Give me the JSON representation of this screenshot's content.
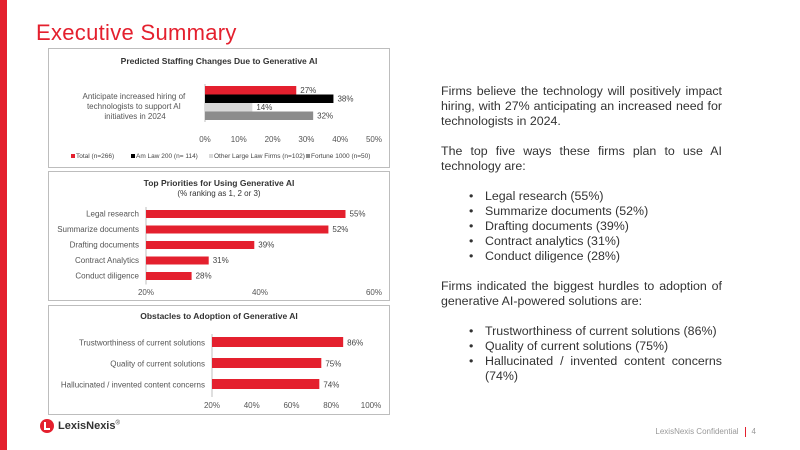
{
  "page": {
    "title": "Executive Summary",
    "footer": {
      "confidential": "LexisNexis Confidential",
      "page_number": "4"
    },
    "logo_text": "LexisNexis",
    "logo_suffix": "®",
    "accent_color": "#e4202e"
  },
  "right": {
    "p1": "Firms believe the technology will positively impact hiring, with 27% anticipating an increased need for technologists in 2024.",
    "p2": "The top five ways these firms plan to use AI technology are:",
    "uses": [
      "Legal research (55%)",
      "Summarize documents (52%)",
      "Drafting documents (39%)",
      "Contract analytics (31%)",
      "Conduct diligence (28%)"
    ],
    "p3": "Firms indicated the biggest hurdles to adoption of generative AI-powered solutions are:",
    "hurdles": [
      "Trustworthiness of current solutions (86%)",
      "Quality of current solutions (75%)",
      "Hallucinated / invented content concerns (74%)"
    ],
    "bullet": "•"
  },
  "chart_data": [
    {
      "type": "bar",
      "title": "Predicted Staffing Changes Due to Generative AI",
      "categories": [
        "Anticipate increased hiring of technologists to support AI initiatives in 2024"
      ],
      "series": [
        {
          "name": "Total (n=266)",
          "values": [
            27
          ],
          "color": "#e4202e"
        },
        {
          "name": "Am Law 200 (n= 114)",
          "values": [
            38
          ],
          "color": "#000000"
        },
        {
          "name": "Other Large Law Firms (n=102)",
          "values": [
            14
          ],
          "color": "#d9d9d9"
        },
        {
          "name": "Fortune 1000 (n=50)",
          "values": [
            32
          ],
          "color": "#8c8c8c"
        }
      ],
      "xlim": [
        0,
        50
      ],
      "xticks": [
        "0%",
        "10%",
        "20%",
        "30%",
        "40%",
        "50%"
      ],
      "data_labels": [
        "27%",
        "38%",
        "14%",
        "32%"
      ],
      "legend_position": "bottom"
    },
    {
      "type": "bar",
      "title": "Top Priorities for Using Generative AI",
      "subtitle": "(% ranking as 1, 2 or 3)",
      "categories": [
        "Legal research",
        "Summarize documents",
        "Drafting documents",
        "Contract Analytics",
        "Conduct diligence"
      ],
      "values": [
        55,
        52,
        39,
        31,
        28
      ],
      "data_labels": [
        "55%",
        "52%",
        "39%",
        "31%",
        "28%"
      ],
      "xlim": [
        20,
        60
      ],
      "xticks": [
        "20%",
        "40%",
        "60%"
      ],
      "color": "#e4202e"
    },
    {
      "type": "bar",
      "title": "Obstacles to Adoption of Generative AI",
      "categories": [
        "Trustworthiness of current solutions",
        "Quality of current solutions",
        "Hallucinated / invented content concerns"
      ],
      "values": [
        86,
        75,
        74
      ],
      "data_labels": [
        "86%",
        "75%",
        "74%"
      ],
      "xlim": [
        20,
        100
      ],
      "xticks": [
        "20%",
        "40%",
        "60%",
        "80%",
        "100%"
      ],
      "color": "#e4202e"
    }
  ]
}
